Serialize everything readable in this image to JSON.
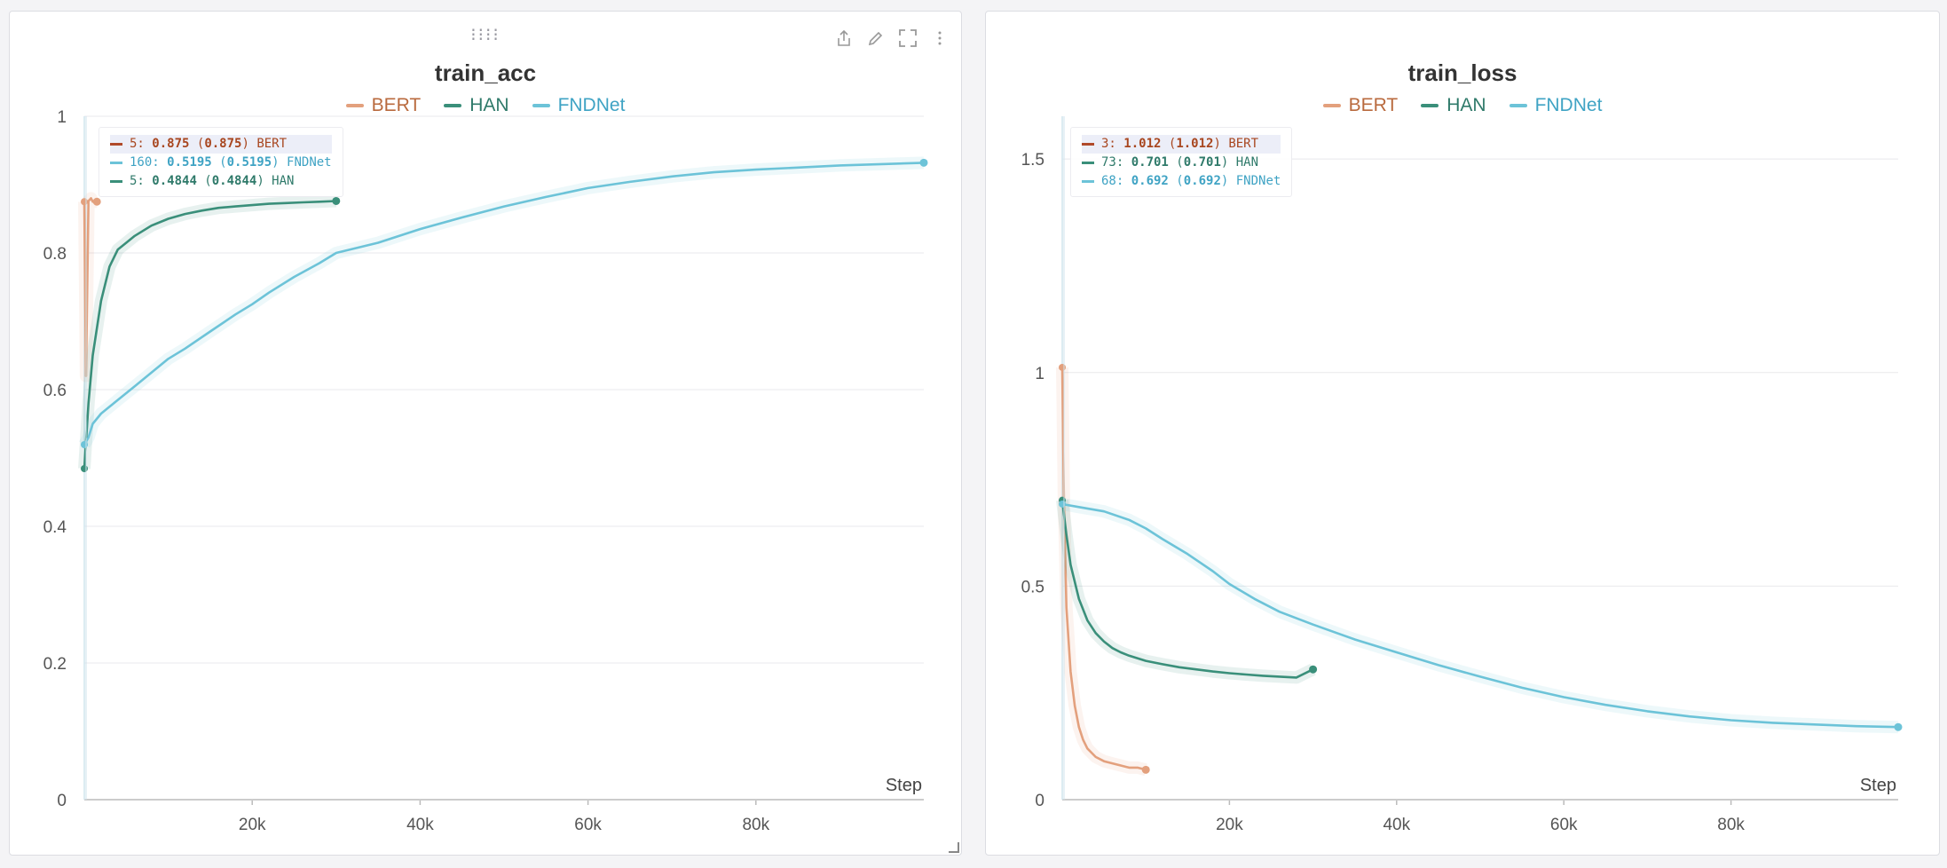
{
  "colors": {
    "BERT": "#e3a07d",
    "HAN": "#3a8f7a",
    "FNDNet": "#6cc3d8"
  },
  "text_colors": {
    "BERT": "#b96a3e",
    "HAN": "#2f7a6a",
    "FNDNet": "#3fa3c4"
  },
  "toolbar": {
    "drag_icon": "drag-handle-icon",
    "icons": [
      "share-icon",
      "edit-icon",
      "fullscreen-icon",
      "more-icon"
    ]
  },
  "chart_data": [
    {
      "type": "line",
      "title": "train_acc",
      "xlabel": "Step",
      "ylabel": "",
      "xlim": [
        0,
        100000
      ],
      "ylim": [
        0,
        1
      ],
      "x_ticks": [
        {
          "value": 20000,
          "label": "20k"
        },
        {
          "value": 40000,
          "label": "40k"
        },
        {
          "value": 60000,
          "label": "60k"
        },
        {
          "value": 80000,
          "label": "80k"
        }
      ],
      "y_ticks": [
        {
          "value": 0,
          "label": "0"
        },
        {
          "value": 0.2,
          "label": "0.2"
        },
        {
          "value": 0.4,
          "label": "0.4"
        },
        {
          "value": 0.6,
          "label": "0.6"
        },
        {
          "value": 0.8,
          "label": "0.8"
        },
        {
          "value": 1,
          "label": "1"
        }
      ],
      "grid": true,
      "legend_position": "top-center",
      "series": [
        {
          "name": "BERT",
          "x": [
            0,
            200,
            500,
            800,
            1000,
            1500
          ],
          "y": [
            0.875,
            0.62,
            0.876,
            0.88,
            0.875,
            0.875
          ]
        },
        {
          "name": "HAN",
          "x": [
            0,
            500,
            1000,
            2000,
            3000,
            4000,
            5000,
            6000,
            8000,
            10000,
            12000,
            14000,
            16000,
            18000,
            20000,
            22000,
            24000,
            26000,
            28000,
            30000
          ],
          "y": [
            0.4844,
            0.58,
            0.65,
            0.73,
            0.78,
            0.805,
            0.815,
            0.825,
            0.84,
            0.85,
            0.857,
            0.862,
            0.866,
            0.868,
            0.87,
            0.872,
            0.873,
            0.874,
            0.875,
            0.876
          ]
        },
        {
          "name": "FNDNet",
          "x": [
            0,
            500,
            1000,
            2000,
            3000,
            4000,
            6000,
            8000,
            10000,
            12000,
            15000,
            18000,
            20000,
            22000,
            25000,
            28000,
            30000,
            35000,
            40000,
            45000,
            50000,
            55000,
            60000,
            65000,
            70000,
            75000,
            80000,
            85000,
            90000,
            95000,
            100000
          ],
          "y": [
            0.5195,
            0.53,
            0.55,
            0.565,
            0.575,
            0.585,
            0.605,
            0.625,
            0.645,
            0.66,
            0.685,
            0.71,
            0.725,
            0.742,
            0.765,
            0.785,
            0.8,
            0.815,
            0.835,
            0.852,
            0.868,
            0.882,
            0.895,
            0.904,
            0.912,
            0.918,
            0.922,
            0.925,
            0.928,
            0.93,
            0.932
          ]
        }
      ],
      "tooltip": [
        {
          "series": "BERT",
          "step": "5",
          "value": "0.875",
          "smoothed": "0.875",
          "highlight": true
        },
        {
          "series": "FNDNet",
          "step": "160",
          "value": "0.5195",
          "smoothed": "0.5195",
          "highlight": false
        },
        {
          "series": "HAN",
          "step": "5",
          "value": "0.4844",
          "smoothed": "0.4844",
          "highlight": false
        }
      ]
    },
    {
      "type": "line",
      "title": "train_loss",
      "xlabel": "Step",
      "ylabel": "",
      "xlim": [
        0,
        100000
      ],
      "ylim": [
        0,
        1.6
      ],
      "x_ticks": [
        {
          "value": 20000,
          "label": "20k"
        },
        {
          "value": 40000,
          "label": "40k"
        },
        {
          "value": 60000,
          "label": "60k"
        },
        {
          "value": 80000,
          "label": "80k"
        }
      ],
      "y_ticks": [
        {
          "value": 0,
          "label": "0"
        },
        {
          "value": 0.5,
          "label": "0.5"
        },
        {
          "value": 1,
          "label": "1"
        },
        {
          "value": 1.5,
          "label": "1.5"
        }
      ],
      "grid": true,
      "legend_position": "top-center",
      "series": [
        {
          "name": "BERT",
          "x": [
            0,
            200,
            500,
            1000,
            1500,
            2000,
            2500,
            3000,
            4000,
            5000,
            6000,
            7000,
            8000,
            9000,
            10000
          ],
          "y": [
            1.012,
            0.7,
            0.45,
            0.3,
            0.22,
            0.17,
            0.14,
            0.12,
            0.1,
            0.09,
            0.085,
            0.08,
            0.075,
            0.075,
            0.07
          ]
        },
        {
          "name": "HAN",
          "x": [
            0,
            500,
            1000,
            2000,
            3000,
            4000,
            5000,
            6000,
            7000,
            8000,
            10000,
            12000,
            14000,
            16000,
            18000,
            20000,
            22000,
            24000,
            26000,
            28000,
            30000
          ],
          "y": [
            0.701,
            0.62,
            0.55,
            0.47,
            0.42,
            0.39,
            0.37,
            0.355,
            0.345,
            0.337,
            0.325,
            0.317,
            0.31,
            0.305,
            0.3,
            0.296,
            0.293,
            0.29,
            0.288,
            0.286,
            0.305
          ]
        },
        {
          "name": "FNDNet",
          "x": [
            0,
            2000,
            5000,
            8000,
            10000,
            12000,
            15000,
            18000,
            20000,
            23000,
            26000,
            30000,
            35000,
            40000,
            45000,
            50000,
            55000,
            60000,
            65000,
            70000,
            75000,
            80000,
            85000,
            90000,
            95000,
            100000
          ],
          "y": [
            0.692,
            0.685,
            0.675,
            0.655,
            0.635,
            0.61,
            0.575,
            0.535,
            0.505,
            0.47,
            0.44,
            0.41,
            0.375,
            0.345,
            0.315,
            0.288,
            0.262,
            0.24,
            0.222,
            0.207,
            0.195,
            0.186,
            0.18,
            0.176,
            0.172,
            0.17
          ]
        }
      ],
      "tooltip": [
        {
          "series": "BERT",
          "step": "3",
          "value": "1.012",
          "smoothed": "1.012",
          "highlight": true
        },
        {
          "series": "HAN",
          "step": "73",
          "value": "0.701",
          "smoothed": "0.701",
          "highlight": false
        },
        {
          "series": "FNDNet",
          "step": "68",
          "value": "0.692",
          "smoothed": "0.692",
          "highlight": false
        }
      ]
    }
  ]
}
